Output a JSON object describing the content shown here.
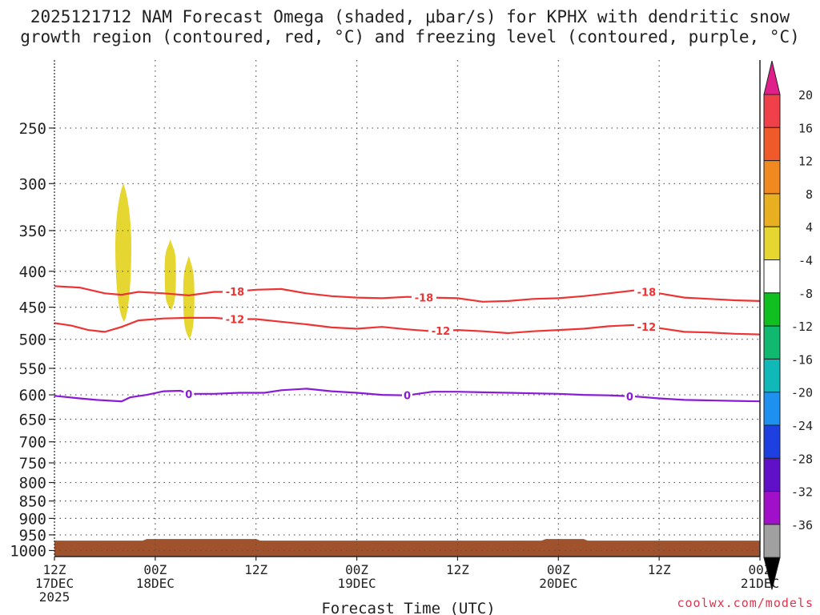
{
  "title_line1": "2025121712 NAM Forecast Omega (shaded, μbar/s) for KPHX with dendritic snow",
  "title_line2": "growth region (contoured, red, °C) and freezing level (contoured, purple, °C)",
  "credit": "coolwx.com/models",
  "chart_data": {
    "type": "time-height cross section",
    "xlabel": "Forecast Time (UTC)",
    "x_range_hours": [
      0,
      84
    ],
    "x_ticks": [
      {
        "hour": 0,
        "lines": [
          "12Z",
          "17DEC",
          "2025"
        ]
      },
      {
        "hour": 12,
        "lines": [
          "00Z",
          "18DEC"
        ]
      },
      {
        "hour": 24,
        "lines": [
          "12Z"
        ]
      },
      {
        "hour": 36,
        "lines": [
          "00Z",
          "19DEC"
        ]
      },
      {
        "hour": 48,
        "lines": [
          "12Z"
        ]
      },
      {
        "hour": 60,
        "lines": [
          "00Z",
          "20DEC"
        ]
      },
      {
        "hour": 72,
        "lines": [
          "12Z"
        ]
      },
      {
        "hour": 84,
        "lines": [
          "00Z",
          "21DEC"
        ]
      }
    ],
    "y_levels_mb": [
      250,
      300,
      350,
      400,
      450,
      500,
      550,
      600,
      650,
      700,
      750,
      800,
      850,
      900,
      950,
      1000
    ],
    "y_range_mb": [
      200,
      1020
    ],
    "grid": "dotted",
    "series": [
      {
        "name": "-18C isotherm",
        "color": "#ee3333",
        "label": "-18",
        "label_hours": [
          21.5,
          44,
          70.5
        ],
        "points": [
          [
            0,
            420
          ],
          [
            3,
            422
          ],
          [
            6,
            430
          ],
          [
            8,
            432
          ],
          [
            10,
            428
          ],
          [
            13,
            430
          ],
          [
            16,
            433
          ],
          [
            19,
            428
          ],
          [
            21,
            428
          ],
          [
            24,
            425
          ],
          [
            27,
            424
          ],
          [
            30,
            430
          ],
          [
            33,
            434
          ],
          [
            36,
            436
          ],
          [
            39,
            437
          ],
          [
            42,
            435
          ],
          [
            45,
            436
          ],
          [
            48,
            437
          ],
          [
            51,
            442
          ],
          [
            54,
            441
          ],
          [
            57,
            438
          ],
          [
            60,
            437
          ],
          [
            63,
            434
          ],
          [
            66,
            430
          ],
          [
            69,
            426
          ],
          [
            72,
            430
          ],
          [
            75,
            436
          ],
          [
            78,
            438
          ],
          [
            81,
            440
          ],
          [
            84,
            441
          ]
        ]
      },
      {
        "name": "-12C isotherm",
        "color": "#ee3333",
        "label": "-12",
        "label_hours": [
          21.5,
          46,
          70.5
        ],
        "points": [
          [
            0,
            474
          ],
          [
            2,
            478
          ],
          [
            4,
            485
          ],
          [
            6,
            488
          ],
          [
            8,
            480
          ],
          [
            10,
            470
          ],
          [
            13,
            467
          ],
          [
            16,
            466
          ],
          [
            19,
            466
          ],
          [
            21,
            468
          ],
          [
            24,
            468
          ],
          [
            27,
            472
          ],
          [
            30,
            476
          ],
          [
            33,
            481
          ],
          [
            36,
            483
          ],
          [
            39,
            480
          ],
          [
            42,
            484
          ],
          [
            45,
            487
          ],
          [
            48,
            485
          ],
          [
            51,
            487
          ],
          [
            54,
            490
          ],
          [
            57,
            487
          ],
          [
            60,
            485
          ],
          [
            63,
            483
          ],
          [
            66,
            479
          ],
          [
            69,
            477
          ],
          [
            72,
            482
          ],
          [
            75,
            488
          ],
          [
            78,
            489
          ],
          [
            81,
            491
          ],
          [
            84,
            492
          ]
        ]
      },
      {
        "name": "0C freezing level",
        "color": "#8a1ad8",
        "label": "0",
        "label_hours": [
          16,
          42,
          68.5
        ],
        "points": [
          [
            0,
            602
          ],
          [
            3,
            607
          ],
          [
            5,
            610
          ],
          [
            8,
            613
          ],
          [
            9,
            605
          ],
          [
            11,
            600
          ],
          [
            13,
            593
          ],
          [
            15,
            592
          ],
          [
            16,
            598
          ],
          [
            19,
            598
          ],
          [
            22,
            596
          ],
          [
            25,
            596
          ],
          [
            27,
            591
          ],
          [
            30,
            588
          ],
          [
            33,
            593
          ],
          [
            36,
            596
          ],
          [
            39,
            600
          ],
          [
            42,
            601
          ],
          [
            45,
            594
          ],
          [
            48,
            594
          ],
          [
            51,
            595
          ],
          [
            54,
            596
          ],
          [
            57,
            597
          ],
          [
            60,
            598
          ],
          [
            63,
            600
          ],
          [
            66,
            601
          ],
          [
            69,
            603
          ],
          [
            72,
            607
          ],
          [
            75,
            610
          ],
          [
            78,
            611
          ],
          [
            81,
            612
          ],
          [
            84,
            613
          ]
        ]
      }
    ],
    "omega_shading": {
      "color": "#e6d632",
      "range_ubar_s": [
        4,
        8
      ],
      "blobs": [
        {
          "center_hour": 8.2,
          "top_mb": 300,
          "bottom_mb": 472
        },
        {
          "center_hour": 13.8,
          "top_mb": 360,
          "bottom_mb": 455
        },
        {
          "center_hour": 16,
          "top_mb": 380,
          "bottom_mb": 500
        }
      ]
    },
    "ground": {
      "color": "#a0522d",
      "surface_mb": 968
    },
    "colorbar": {
      "labels": [
        "20",
        "16",
        "12",
        "8",
        "4",
        "-4",
        "-8",
        "-12",
        "-16",
        "-20",
        "-24",
        "-28",
        "-32",
        "-36"
      ],
      "colors": [
        "#f0404a",
        "#f05a2a",
        "#f08a20",
        "#e8b020",
        "#e6d632",
        "#ffffff",
        "#10c020",
        "#10b870",
        "#10b8b8",
        "#1e90f0",
        "#1e40e0",
        "#6010c8",
        "#a010c8",
        "#a0a0a0"
      ],
      "top_color": "#e0208a",
      "bottom_color": "#000000"
    }
  }
}
